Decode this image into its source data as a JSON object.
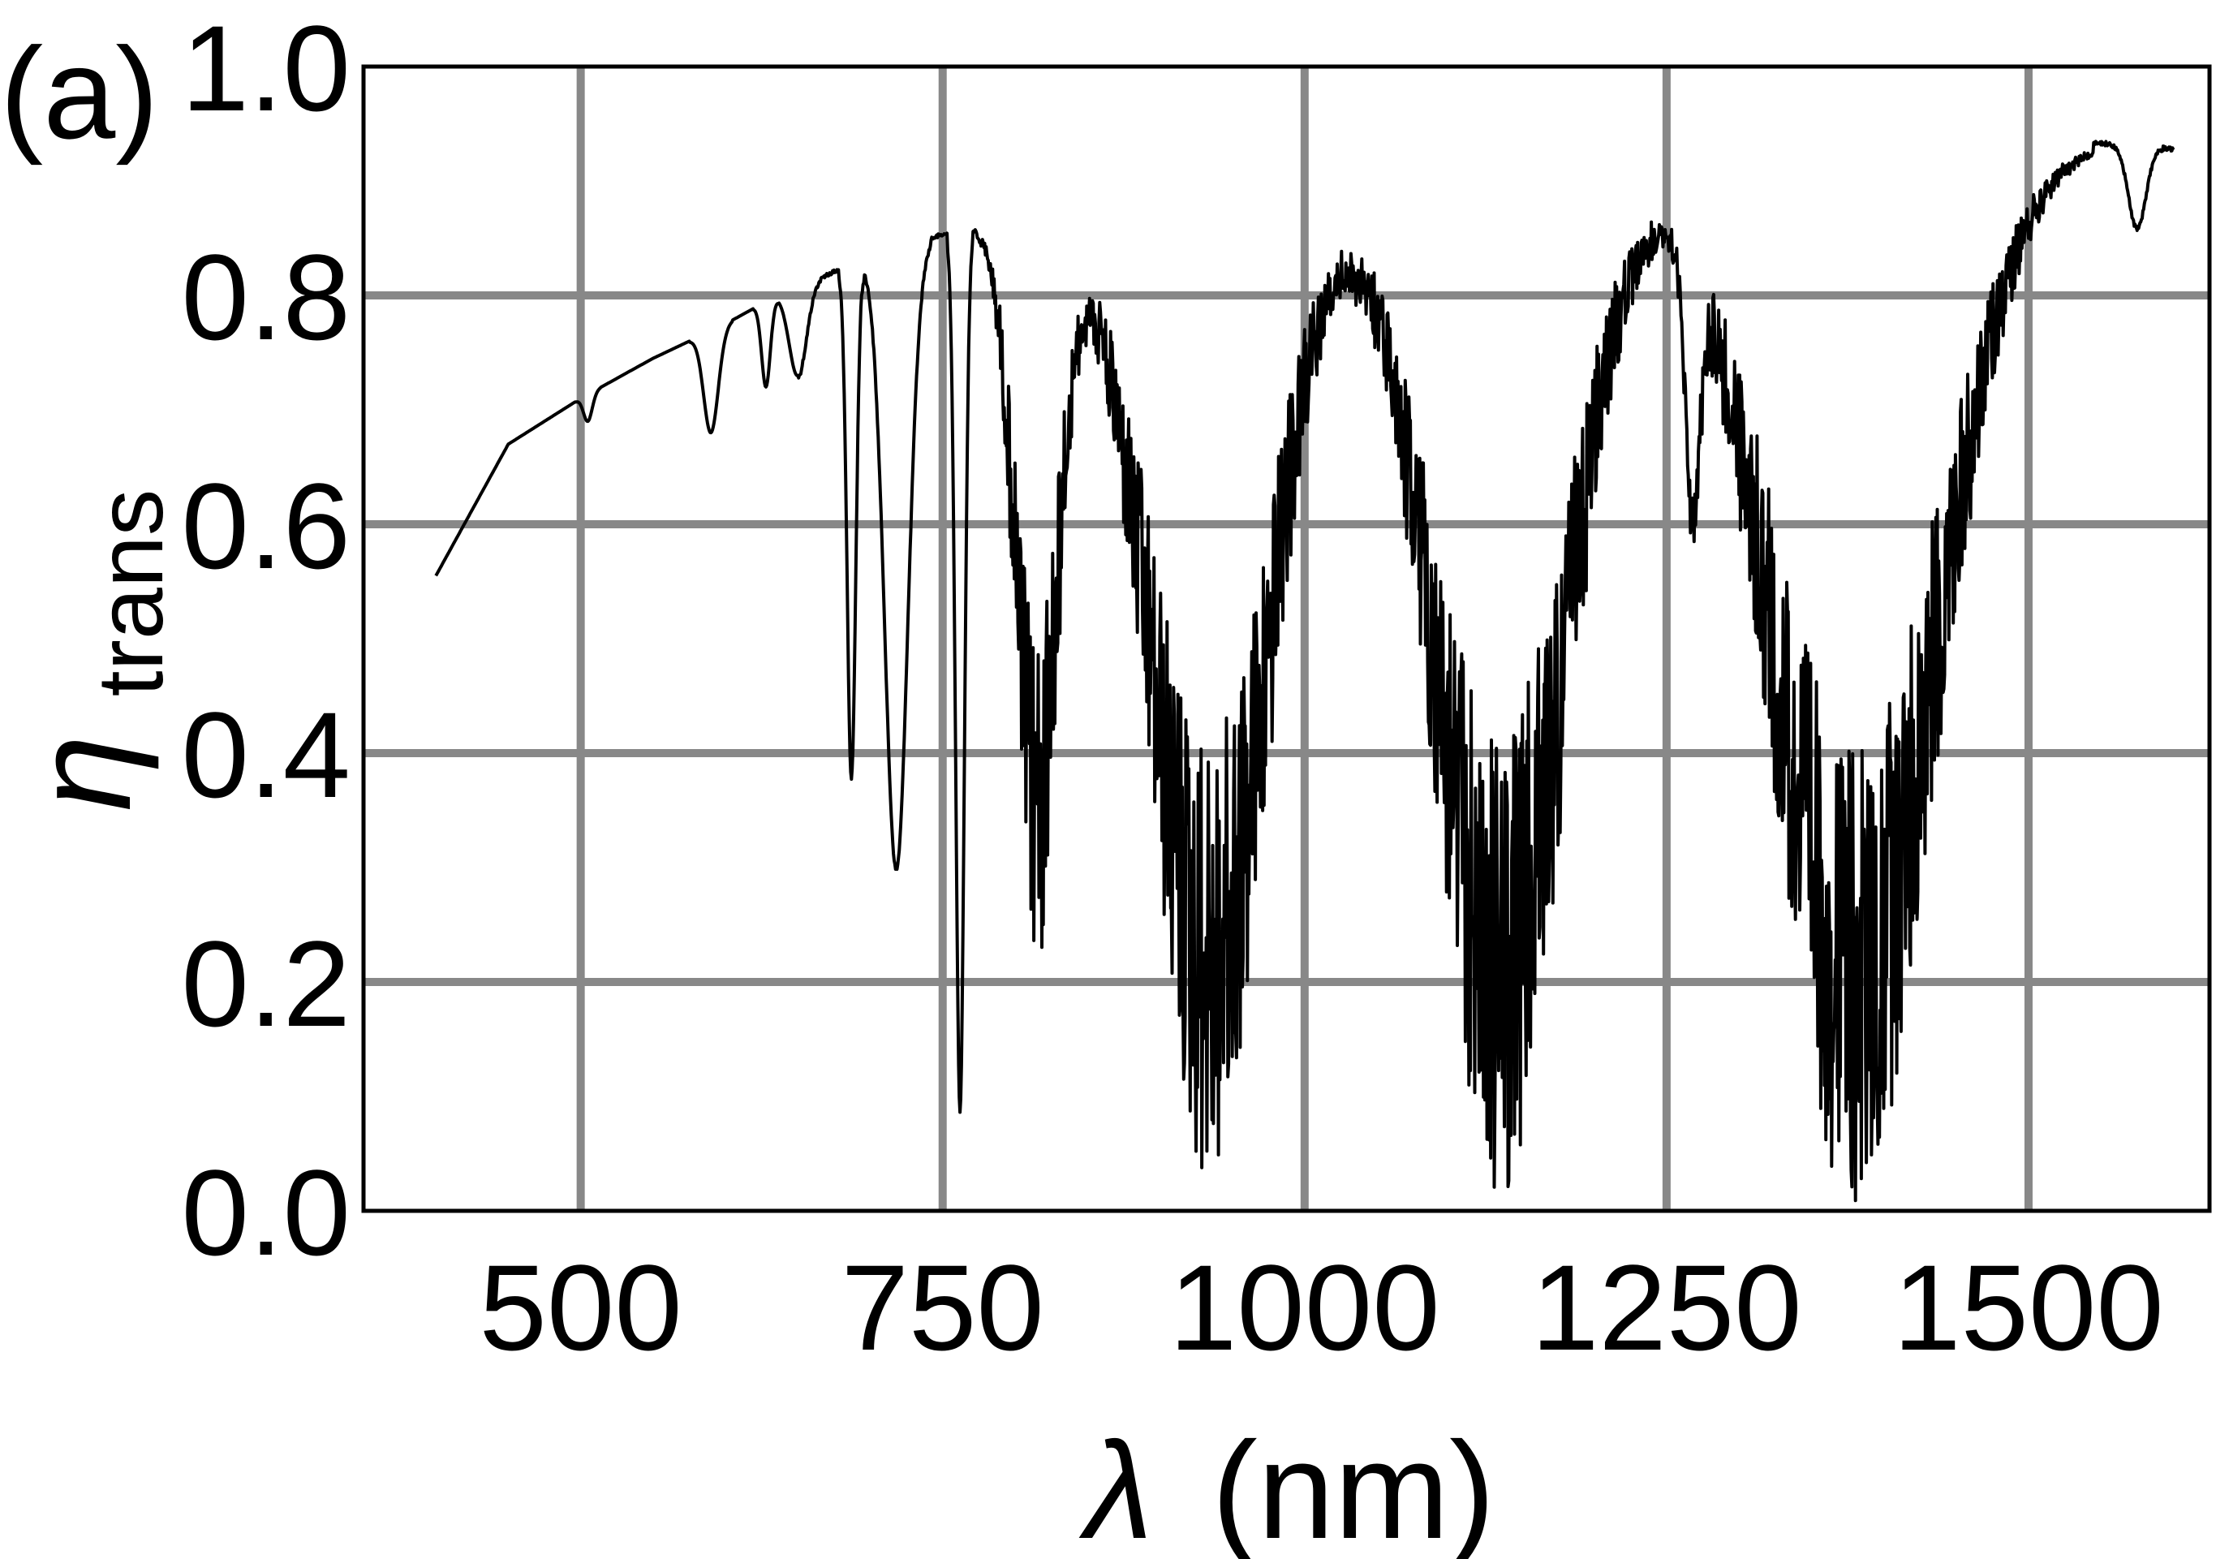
{
  "chart_data": {
    "type": "line",
    "panel_label": "(a)",
    "xlabel": {
      "symbol": "λ",
      "unit": "(nm)"
    },
    "ylabel": {
      "symbol": "η",
      "subscript": "trans"
    },
    "xlim": [
      350,
      1625
    ],
    "ylim": [
      0,
      1
    ],
    "xticks": [
      500,
      750,
      1000,
      1250,
      1500
    ],
    "yticks": [
      0.0,
      0.2,
      0.4,
      0.6,
      0.8,
      1.0
    ],
    "xtick_labels": [
      "500",
      "750",
      "1000",
      "1250",
      "1500"
    ],
    "ytick_labels": [
      "0.0",
      "0.2",
      "0.4",
      "0.6",
      "0.8",
      "1.0"
    ],
    "grid": true,
    "series": [
      {
        "color": "#000000",
        "envelope": [
          [
            400,
            0.555
          ],
          [
            450,
            0.67
          ],
          [
            500,
            0.71
          ],
          [
            550,
            0.745
          ],
          [
            600,
            0.775
          ],
          [
            650,
            0.81
          ],
          [
            700,
            0.835
          ],
          [
            750,
            0.855
          ],
          [
            800,
            0.865
          ],
          [
            850,
            0.875
          ],
          [
            900,
            0.885
          ],
          [
            950,
            0.9
          ],
          [
            1000,
            0.905
          ],
          [
            1050,
            0.91
          ],
          [
            1100,
            0.91
          ],
          [
            1150,
            0.915
          ],
          [
            1200,
            0.92
          ],
          [
            1250,
            0.925
          ],
          [
            1300,
            0.915
          ],
          [
            1350,
            0.91
          ],
          [
            1400,
            0.905
          ],
          [
            1450,
            0.92
          ],
          [
            1500,
            0.93
          ],
          [
            1550,
            0.935
          ],
          [
            1600,
            0.93
          ]
        ],
        "absorption_bands": [
          {
            "center": 505,
            "width": 3,
            "min": 0.69
          },
          {
            "center": 590,
            "width": 5,
            "min": 0.68
          },
          {
            "center": 628,
            "width": 3,
            "min": 0.72
          },
          {
            "center": 650,
            "width": 6,
            "min": 0.73
          },
          {
            "center": 687,
            "width": 3,
            "min": 0.38
          },
          {
            "center": 718,
            "width": 8,
            "min": 0.3
          },
          {
            "center": 762,
            "width": 3,
            "min": 0.09
          },
          {
            "center": 815,
            "width": 14,
            "min": 0.21
          },
          {
            "center": 935,
            "width": 40,
            "min": 0.02
          },
          {
            "center": 1135,
            "width": 45,
            "min": 0.01
          },
          {
            "center": 1268,
            "width": 5,
            "min": 0.7
          },
          {
            "center": 1380,
            "width": 55,
            "min": 0.0
          },
          {
            "center": 1575,
            "width": 6,
            "min": 0.86
          }
        ]
      }
    ]
  }
}
